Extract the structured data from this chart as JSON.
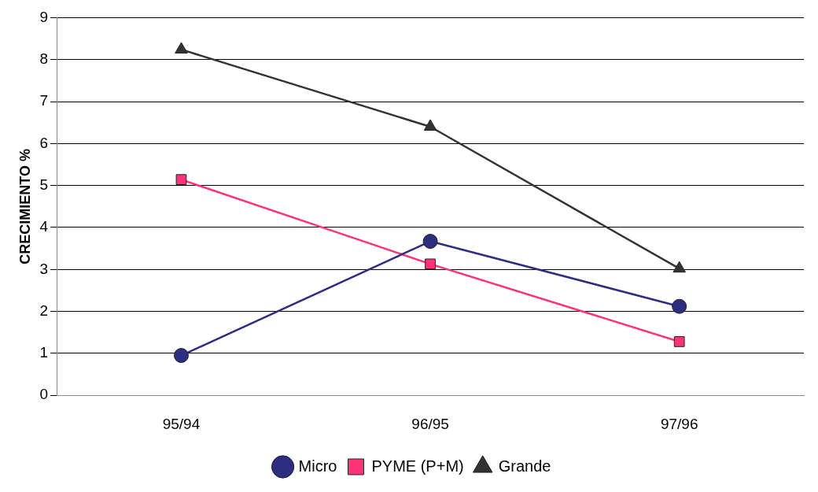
{
  "chart_data": {
    "type": "line",
    "ylabel": "CRECIMIENTO %",
    "categories": [
      "95/94",
      "96/95",
      "97/96"
    ],
    "ylim": [
      0,
      9
    ],
    "yticks": [
      0,
      1,
      2,
      3,
      4,
      5,
      6,
      7,
      8,
      9
    ],
    "grid": "y",
    "legend": "bottom",
    "series": [
      {
        "name": "Micro",
        "color": "#2e2e80",
        "marker": "circle",
        "values": [
          0.95,
          3.67,
          2.12
        ]
      },
      {
        "name": "PYME (P+M)",
        "color": "#ff3377",
        "marker": "square",
        "values": [
          5.14,
          3.13,
          1.28
        ]
      },
      {
        "name": "Grande",
        "color": "#333333",
        "marker": "triangle",
        "values": [
          8.24,
          6.4,
          3.02
        ]
      }
    ]
  }
}
